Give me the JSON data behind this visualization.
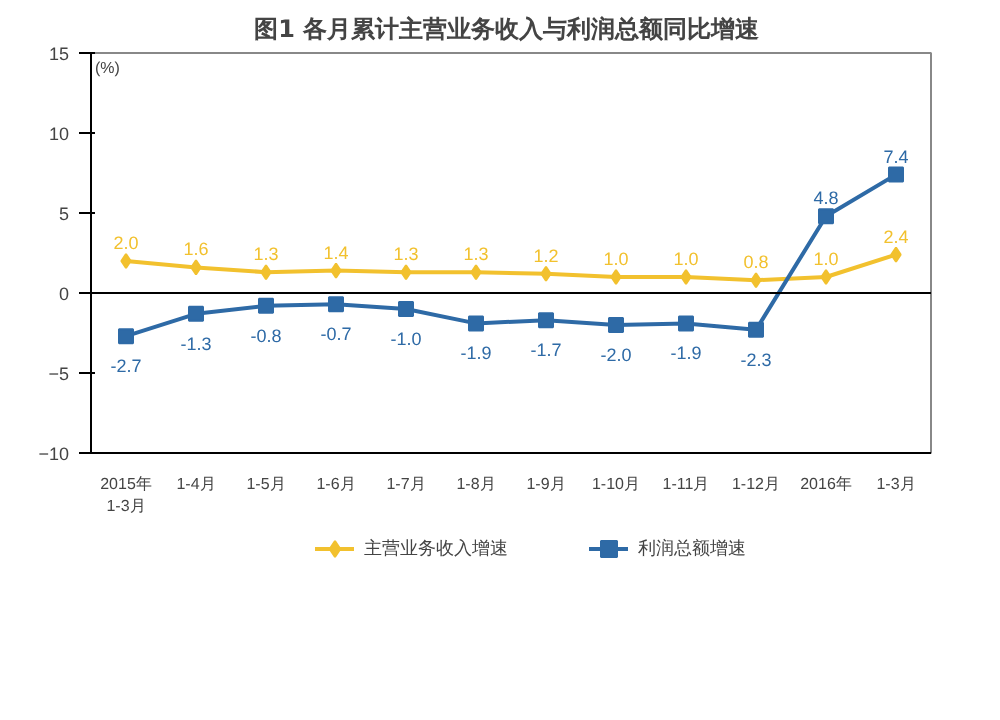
{
  "chart_data": {
    "type": "line",
    "title": "图1  各月累计主营业务收入与利润总额同比增速",
    "ylabel": "(%)",
    "categories": [
      "2015年\n1-3月",
      "1-4月",
      "1-5月",
      "1-6月",
      "1-7月",
      "1-8月",
      "1-9月",
      "1-10月",
      "1-11月",
      "1-12月",
      "2016年",
      "1-3月"
    ],
    "series": [
      {
        "name": "主营业务收入增速",
        "color": "#f2c12e",
        "marker": "diamond",
        "values": [
          2.0,
          1.6,
          1.3,
          1.4,
          1.3,
          1.3,
          1.2,
          1.0,
          1.0,
          0.8,
          1.0,
          2.4
        ],
        "value_labels": [
          "2.0",
          "1.6",
          "1.3",
          "1.4",
          "1.3",
          "1.3",
          "1.2",
          "1.0",
          "1.0",
          "0.8",
          "1.0",
          "2.4"
        ]
      },
      {
        "name": "利润总额增速",
        "color": "#2e6aa6",
        "marker": "square",
        "values": [
          -2.7,
          -1.3,
          -0.8,
          -0.7,
          -1.0,
          -1.9,
          -1.7,
          -2.0,
          -1.9,
          -2.3,
          4.8,
          7.4
        ],
        "value_labels": [
          "-2.7",
          "-1.3",
          "-0.8",
          "-0.7",
          "-1.0",
          "-1.9",
          "-1.7",
          "-2.0",
          "-1.9",
          "-2.3",
          "4.8",
          "7.4"
        ]
      }
    ],
    "ylim": [
      -10,
      15
    ],
    "yticks": [
      -10,
      -5,
      0,
      5,
      10,
      15
    ],
    "grid": false,
    "legend": "bottom",
    "ref_lines": [
      {
        "axis": "y",
        "value": 0,
        "color": "#000000"
      }
    ]
  }
}
